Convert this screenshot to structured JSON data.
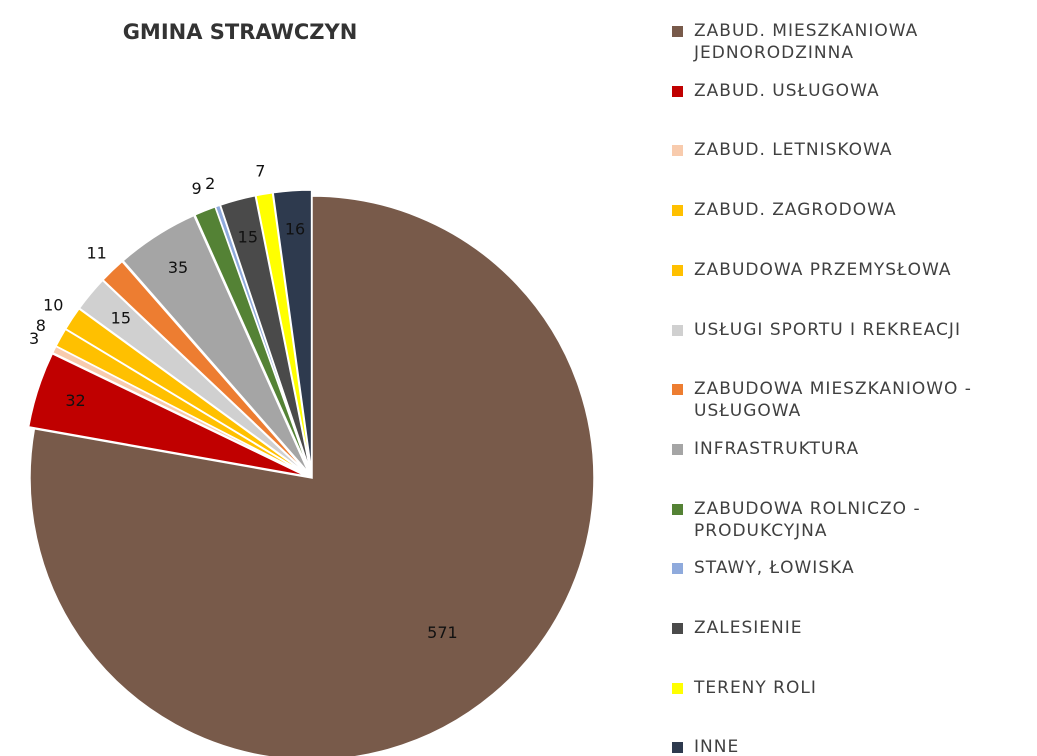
{
  "chart_data": {
    "type": "pie",
    "title": "GMINA STRAWCZYN",
    "categories": [
      "ZABUD. MIESZKANIOWA JEDNORODZINNA",
      "ZABUD. USŁUGOWA",
      "ZABUD. LETNISKOWA",
      "ZABUD. ZAGRODOWA",
      "ZABUDOWA PRZEMYSŁOWA",
      "USŁUGI SPORTU I REKREACJI",
      "ZABUDOWA MIESZKANIOWO - USŁUGOWA",
      "INFRASTRUKTURA",
      "ZABUDOWA ROLNICZO - PRODUKCYJNA",
      "STAWY, ŁOWISKA",
      "ZALESIENIE",
      "TERENY ROLI",
      "INNE"
    ],
    "values": [
      571,
      32,
      3,
      8,
      10,
      15,
      11,
      35,
      9,
      2,
      15,
      7,
      16
    ],
    "colors": [
      "#785a4a",
      "#c00000",
      "#f8cbad",
      "#ffc000",
      "#ffc000",
      "#d0d0d0",
      "#ed7d31",
      "#a5a5a5",
      "#548235",
      "#8faadc",
      "#4a4a4a",
      "#ffff00",
      "#2e3a4e"
    ]
  }
}
